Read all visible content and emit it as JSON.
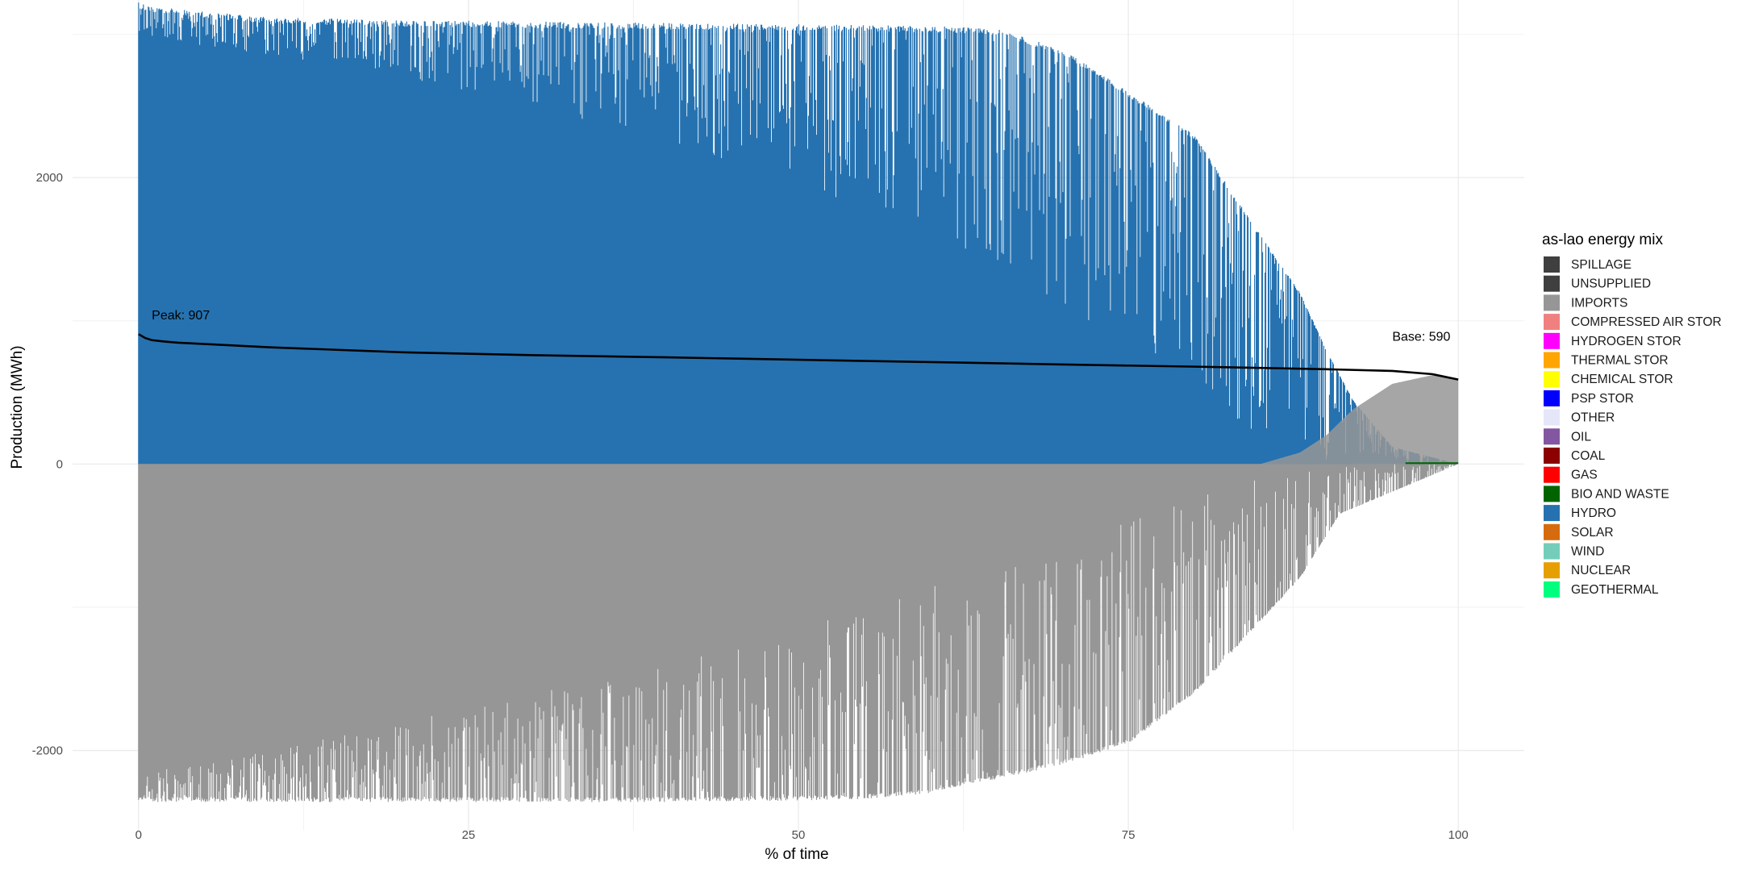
{
  "chart_data": {
    "type": "area",
    "xlabel": "% of time",
    "ylabel": "Production (MWh)",
    "xlim": [
      -5,
      105
    ],
    "ylim": [
      -2560,
      3240
    ],
    "x_ticks": [
      0,
      25,
      50,
      75,
      100
    ],
    "y_ticks": [
      -2000,
      0,
      2000
    ],
    "grid": true,
    "legend": {
      "title": "as-lao energy mix",
      "placement": "right",
      "entries": [
        {
          "name": "SPILLAGE",
          "color": "#3f3f3f"
        },
        {
          "name": "UNSUPPLIED",
          "color": "#3f3f3f"
        },
        {
          "name": "IMPORTS",
          "color": "#969696"
        },
        {
          "name": "COMPRESSED AIR STOR",
          "color": "#f08080"
        },
        {
          "name": "HYDROGEN STOR",
          "color": "#ff00ff"
        },
        {
          "name": "THERMAL STOR",
          "color": "#ffa500"
        },
        {
          "name": "CHEMICAL STOR",
          "color": "#ffff00"
        },
        {
          "name": "PSP STOR",
          "color": "#0000ff"
        },
        {
          "name": "OTHER",
          "color": "#e6e6fa"
        },
        {
          "name": "OIL",
          "color": "#8356a2"
        },
        {
          "name": "COAL",
          "color": "#8b0000"
        },
        {
          "name": "GAS",
          "color": "#ff0000"
        },
        {
          "name": "BIO AND WASTE",
          "color": "#006400"
        },
        {
          "name": "HYDRO",
          "color": "#2672b0"
        },
        {
          "name": "SOLAR",
          "color": "#d66b0d"
        },
        {
          "name": "WIND",
          "color": "#74cdb9"
        },
        {
          "name": "NUCLEAR",
          "color": "#e69f00"
        },
        {
          "name": "GEOTHERMAL",
          "color": "#00ff7f"
        }
      ]
    },
    "annotations": [
      {
        "text": "Peak: 907",
        "x": 1,
        "y": 1010
      },
      {
        "text": "Base: 590",
        "x": 95,
        "y": 860
      }
    ],
    "load_curve": {
      "color": "#000000",
      "x": [
        0,
        0.5,
        1,
        2,
        3,
        5,
        10,
        20,
        30,
        40,
        50,
        60,
        70,
        80,
        90,
        95,
        98,
        100
      ],
      "y": [
        907,
        880,
        865,
        855,
        847,
        838,
        815,
        780,
        760,
        745,
        728,
        712,
        695,
        680,
        662,
        650,
        628,
        590
      ]
    },
    "series": [
      {
        "name": "HYDRO",
        "color": "#2672b0",
        "direction": "positive",
        "x": [
          0,
          1,
          5,
          10,
          20,
          30,
          40,
          50,
          60,
          65,
          70,
          75,
          80,
          85,
          88,
          90,
          92,
          95,
          100
        ],
        "envelope": [
          3230,
          3200,
          3160,
          3120,
          3100,
          3090,
          3080,
          3070,
          3060,
          3040,
          2900,
          2600,
          2300,
          1600,
          1200,
          800,
          450,
          120,
          0
        ],
        "floor": [
          3020,
          2980,
          2920,
          2850,
          2700,
          2500,
          2250,
          1950,
          1550,
          1350,
          1100,
          850,
          500,
          200,
          80,
          20,
          0,
          0,
          0
        ]
      },
      {
        "name": "IMPORTS",
        "color": "#969696",
        "direction": "negative",
        "x": [
          0,
          5,
          10,
          20,
          30,
          40,
          50,
          55,
          60,
          65,
          70,
          75,
          80,
          85,
          88,
          91,
          100
        ],
        "envelope": [
          -2360,
          -2360,
          -2360,
          -2360,
          -2360,
          -2360,
          -2350,
          -2340,
          -2300,
          -2200,
          -2100,
          -1950,
          -1600,
          -1100,
          -800,
          -350,
          0
        ],
        "floor": [
          -2150,
          -2100,
          -2000,
          -1800,
          -1600,
          -1400,
          -1150,
          -1000,
          -850,
          -700,
          -550,
          -380,
          -200,
          -80,
          -30,
          0,
          0
        ]
      },
      {
        "name": "IMPORTS",
        "color": "#969696",
        "direction": "positive",
        "x": [
          85,
          88,
          90,
          92,
          95,
          98,
          100
        ],
        "values": [
          0,
          80,
          200,
          380,
          560,
          620,
          590
        ]
      },
      {
        "name": "BIO AND WASTE",
        "color": "#006400",
        "direction": "positive",
        "x": [
          96,
          100
        ],
        "values": [
          12,
          12
        ]
      }
    ]
  }
}
